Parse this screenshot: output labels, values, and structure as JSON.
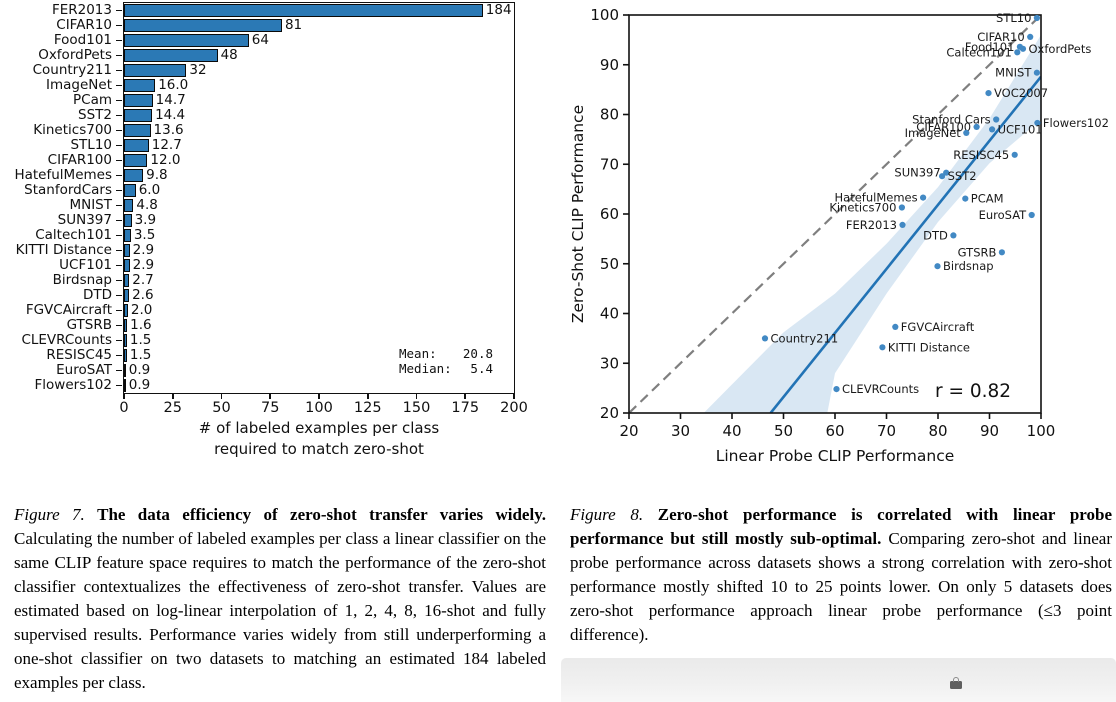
{
  "chart_data": [
    {
      "type": "bar",
      "orientation": "horizontal",
      "title": "",
      "xlabel_line1": "# of labeled examples per class",
      "xlabel_line2": "required to match zero-shot",
      "xlim": [
        0,
        200
      ],
      "xticks": [
        0,
        25,
        50,
        75,
        100,
        125,
        150,
        175,
        200
      ],
      "bar_color": "#2b79b5",
      "categories": [
        "FER2013",
        "CIFAR10",
        "Food101",
        "OxfordPets",
        "Country211",
        "ImageNet",
        "PCam",
        "SST2",
        "Kinetics700",
        "STL10",
        "CIFAR100",
        "HatefulMemes",
        "StanfordCars",
        "MNIST",
        "SUN397",
        "Caltech101",
        "KITTI Distance",
        "UCF101",
        "Birdsnap",
        "DTD",
        "FGVCAircraft",
        "GTSRB",
        "CLEVRCounts",
        "RESISC45",
        "EuroSAT",
        "Flowers102"
      ],
      "values": [
        184,
        81,
        64,
        48,
        32,
        16.0,
        14.7,
        14.4,
        13.6,
        12.7,
        12.0,
        9.8,
        6.0,
        4.8,
        3.9,
        3.5,
        2.9,
        2.9,
        2.7,
        2.6,
        2.0,
        1.6,
        1.5,
        1.5,
        0.9,
        0.9
      ],
      "value_labels": [
        "184",
        "81",
        "64",
        "48",
        "32",
        "16.0",
        "14.7",
        "14.4",
        "13.6",
        "12.7",
        "12.0",
        "9.8",
        "6.0",
        "4.8",
        "3.9",
        "3.5",
        "2.9",
        "2.9",
        "2.7",
        "2.6",
        "2.0",
        "1.6",
        "1.5",
        "1.5",
        "0.9",
        "0.9"
      ],
      "annotations": {
        "mean_label": "Mean:",
        "mean_value": "20.8",
        "median_label": "Median:",
        "median_value": "5.4"
      }
    },
    {
      "type": "scatter",
      "xlabel": "Linear Probe CLIP Performance",
      "ylabel": "Zero-Shot CLIP Performance",
      "xlim": [
        20,
        100
      ],
      "ylim": [
        20,
        100
      ],
      "xticks": [
        20,
        30,
        40,
        50,
        60,
        70,
        80,
        90,
        100
      ],
      "yticks": [
        20,
        30,
        40,
        50,
        60,
        70,
        80,
        90,
        100
      ],
      "correlation_text": "r = 0.82",
      "point_color": "#4289c4",
      "line_color": "#2273b5",
      "band_color": "#bad4ea",
      "dash_color": "#7f7f7f",
      "identity_line": {
        "from": [
          20,
          20
        ],
        "to": [
          100,
          100
        ],
        "style": "dashed"
      },
      "regression_line": {
        "from": [
          47.5,
          20
        ],
        "to": [
          100,
          87.6
        ]
      },
      "confidence_band": [
        [
          34.5,
          20
        ],
        [
          50,
          36.2
        ],
        [
          60,
          44
        ],
        [
          70,
          54
        ],
        [
          80,
          65.4
        ],
        [
          90,
          79.2
        ],
        [
          100,
          96
        ],
        [
          100,
          79
        ],
        [
          90,
          70.2
        ],
        [
          80,
          58.4
        ],
        [
          70,
          44
        ],
        [
          60,
          28
        ],
        [
          58.5,
          20
        ]
      ],
      "points": [
        {
          "label": "STL10",
          "x": 99.2,
          "y": 99.4,
          "side": "left"
        },
        {
          "label": "CIFAR10",
          "x": 97.9,
          "y": 95.6,
          "side": "left"
        },
        {
          "label": "Food101",
          "x": 95.9,
          "y": 93.6,
          "side": "left"
        },
        {
          "label": "OxfordPets",
          "x": 96.5,
          "y": 93.2,
          "side": "right"
        },
        {
          "label": "Caltech101",
          "x": 95.4,
          "y": 92.5,
          "side": "left"
        },
        {
          "label": "MNIST",
          "x": 99.2,
          "y": 88.4,
          "side": "left"
        },
        {
          "label": "VOC2007",
          "x": 89.8,
          "y": 84.3,
          "side": "right"
        },
        {
          "label": "Stanford Cars",
          "x": 91.3,
          "y": 79.0,
          "side": "left"
        },
        {
          "label": "Flowers102",
          "x": 99.3,
          "y": 78.3,
          "side": "right"
        },
        {
          "label": "CIFAR100",
          "x": 87.5,
          "y": 77.5,
          "side": "left"
        },
        {
          "label": "UCF101",
          "x": 90.5,
          "y": 77.0,
          "side": "right"
        },
        {
          "label": "ImageNet",
          "x": 85.5,
          "y": 76.3,
          "side": "left"
        },
        {
          "label": "RESISC45",
          "x": 94.9,
          "y": 71.9,
          "side": "left"
        },
        {
          "label": "SUN397",
          "x": 81.6,
          "y": 68.3,
          "side": "left"
        },
        {
          "label": "SST2",
          "x": 80.8,
          "y": 67.6,
          "side": "right"
        },
        {
          "label": "HatefulMemes",
          "x": 77.1,
          "y": 63.3,
          "side": "left"
        },
        {
          "label": "PCAM",
          "x": 85.3,
          "y": 63.1,
          "side": "right"
        },
        {
          "label": "Kinetics700",
          "x": 73.0,
          "y": 61.3,
          "side": "left"
        },
        {
          "label": "EuroSAT",
          "x": 98.2,
          "y": 59.8,
          "side": "left"
        },
        {
          "label": "FER2013",
          "x": 73.1,
          "y": 57.8,
          "side": "left"
        },
        {
          "label": "DTD",
          "x": 83.0,
          "y": 55.7,
          "side": "left"
        },
        {
          "label": "GTSRB",
          "x": 92.4,
          "y": 52.3,
          "side": "left"
        },
        {
          "label": "Birdsnap",
          "x": 79.9,
          "y": 49.5,
          "side": "right"
        },
        {
          "label": "FGVCAircraft",
          "x": 71.7,
          "y": 37.3,
          "side": "right"
        },
        {
          "label": "Country211",
          "x": 46.4,
          "y": 35.0,
          "side": "right"
        },
        {
          "label": "KITTI Distance",
          "x": 69.2,
          "y": 33.2,
          "side": "right"
        },
        {
          "label": "CLEVRCounts",
          "x": 60.3,
          "y": 24.8,
          "side": "right"
        }
      ]
    }
  ],
  "figure7_caption": {
    "label": "Figure 7.",
    "bold": "The data efficiency of zero-shot transfer varies widely.",
    "text": "Calculating the number of labeled examples per class a linear classifier on the same CLIP feature space requires to match the performance of the zero-shot classifier contextualizes the effectiveness of zero-shot transfer. Values are estimated based on log-linear interpolation of 1, 2, 4, 8, 16-shot and fully supervised results. Performance varies widely from still underperforming a one-shot classifier on two datasets to matching an estimated 184 labeled examples per class."
  },
  "figure8_caption": {
    "label": "Figure 8.",
    "bold": "Zero-shot performance is correlated with linear probe performance but still mostly sub-optimal.",
    "text": "Comparing zero-shot and linear probe performance across datasets shows a strong correlation with zero-shot performance mostly shifted 10 to 25 points lower. On only 5 datasets does zero-shot performance approach linear probe performance (≤3 point difference)."
  },
  "footer_panel": {
    "icon": "lock-icon"
  }
}
